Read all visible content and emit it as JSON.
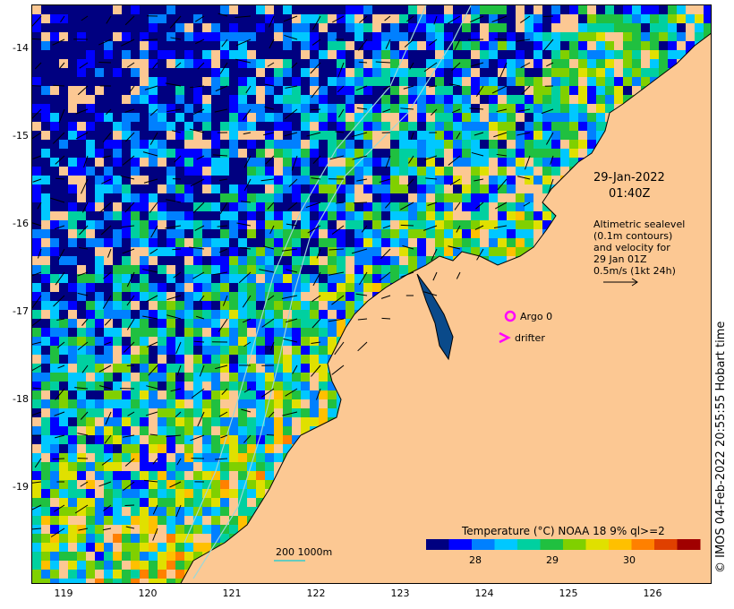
{
  "map": {
    "date_label": "29-Jan-2022",
    "time_label": "01:40Z",
    "altimetry_note": [
      "Altimetric sealevel",
      "(0.1m contours)",
      "and velocity for",
      "29 Jan 01Z",
      "0.5m/s (1kt 24h)"
    ],
    "legend_argo": "Argo 0",
    "legend_drifter": "drifter",
    "depth_contour_label": "200  1000m",
    "colorbar_title": "Temperature (°C) NOAA 18 9% ql>=2",
    "colorbar_ticks": [
      "28",
      "29",
      "30"
    ],
    "y_ticks": [
      "-14",
      "-15",
      "-16",
      "-17",
      "-18",
      "-19"
    ],
    "x_ticks": [
      "119",
      "120",
      "121",
      "122",
      "123",
      "124",
      "125",
      "126"
    ],
    "timestamp": "© IMOS 04-Feb-2022 20:55:55 Hobart time",
    "colors": {
      "land": "#fcc893",
      "contour": "#9ad8d8",
      "argo": "#ff00ff",
      "drifter": "#ff00ff",
      "sst_scale": [
        "#000080",
        "#0000ff",
        "#0080ff",
        "#00c8ff",
        "#00d0a0",
        "#20c040",
        "#80d000",
        "#e0e000",
        "#ffc000",
        "#ff8000",
        "#e04000",
        "#a00000"
      ]
    }
  }
}
